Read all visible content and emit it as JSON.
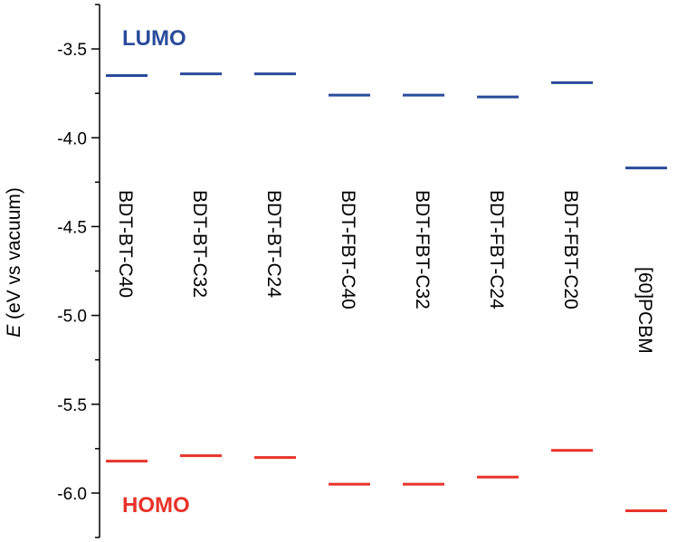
{
  "chart_data": {
    "type": "scatter",
    "ylabel_italic": "E",
    "ylabel_rest": " (eV vs vacuum)",
    "ylim": [
      -6.25,
      -3.25
    ],
    "y_ticks": [
      -3.5,
      -4.0,
      -4.5,
      -5.0,
      -5.5,
      -6.0
    ],
    "y_tick_labels": [
      "-3.5",
      "-4.0",
      "-4.5",
      "-5.0",
      "-5.5",
      "-6.0"
    ],
    "grid": false,
    "materials": [
      "BDT-BT-C40",
      "BDT-BT-C32",
      "BDT-BT-C24",
      "BDT-FBT-C40",
      "BDT-FBT-C32",
      "BDT-FBT-C24",
      "BDT-FBT-C20",
      "[60]PCBM"
    ],
    "series": [
      {
        "name": "LUMO",
        "color": "#2a4b9b",
        "values": [
          -3.65,
          -3.64,
          -3.64,
          -3.76,
          -3.76,
          -3.77,
          -3.69,
          -4.17
        ]
      },
      {
        "name": "HOMO",
        "color": "#e8332a",
        "values": [
          -5.82,
          -5.79,
          -5.8,
          -5.95,
          -5.95,
          -5.91,
          -5.76,
          -6.1
        ]
      }
    ]
  }
}
